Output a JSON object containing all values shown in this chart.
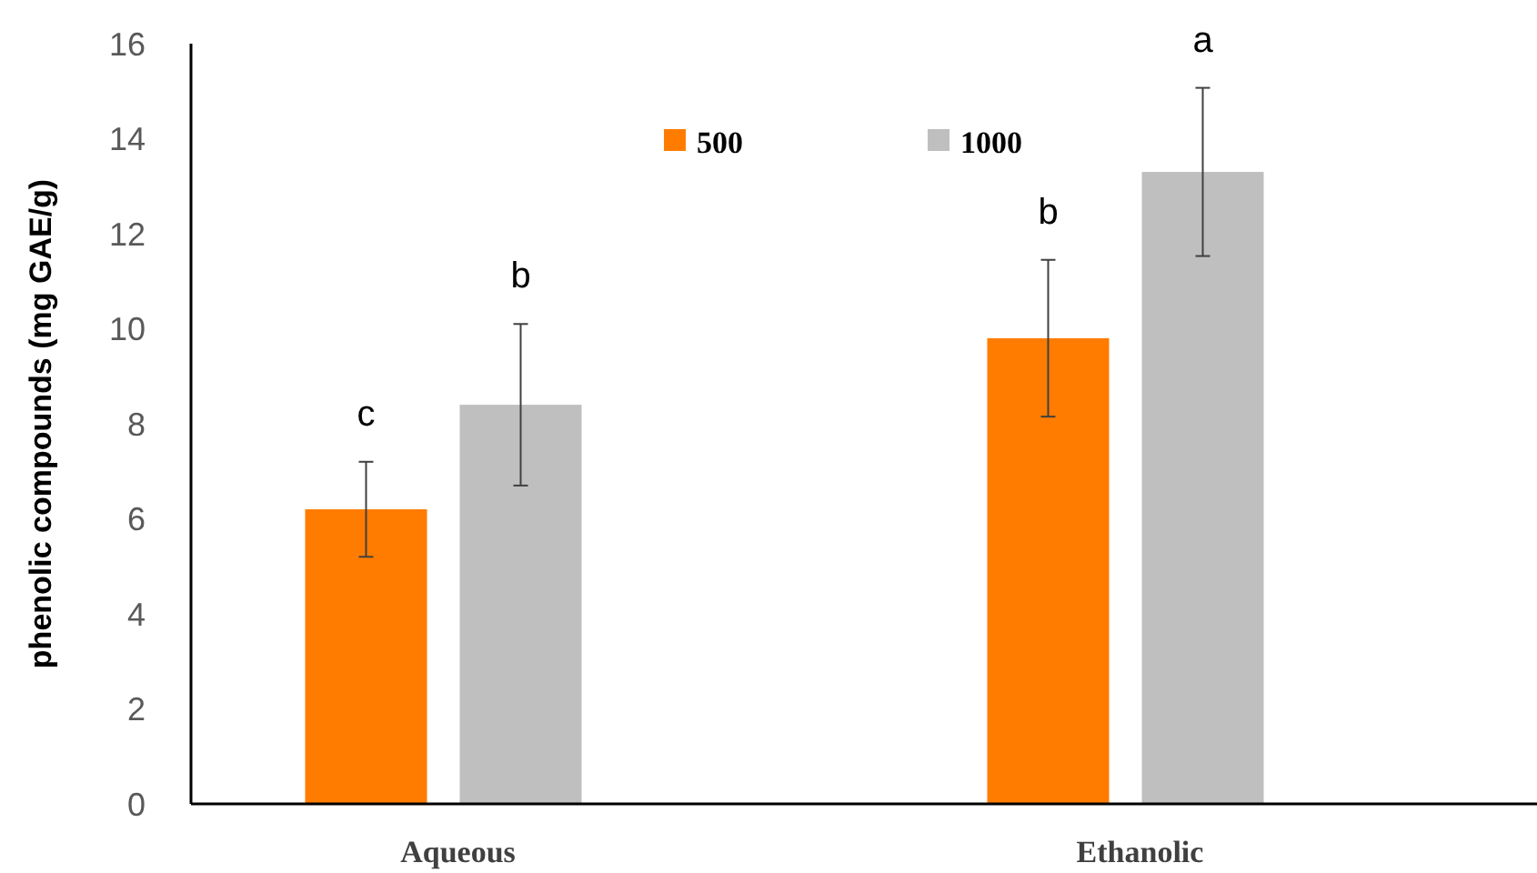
{
  "chart_data": {
    "type": "bar",
    "ylabel": "phenolic compounds (mg GAE/g)",
    "categories": [
      "Aqueous",
      "Ethanolic"
    ],
    "series": [
      {
        "name": "500",
        "color": "#ff7c00",
        "values": [
          6.2,
          9.8
        ],
        "errors": [
          1.0,
          1.65
        ]
      },
      {
        "name": "1000",
        "color": "#bfbfbf",
        "values": [
          8.4,
          13.3
        ],
        "errors": [
          1.7,
          1.77
        ]
      }
    ],
    "ylim": [
      0,
      16
    ],
    "yticks": [
      0,
      2,
      4,
      6,
      8,
      10,
      12,
      14,
      16
    ],
    "grid": false,
    "legend": "top",
    "annotations": [
      "c",
      "b",
      "b",
      "a"
    ]
  }
}
